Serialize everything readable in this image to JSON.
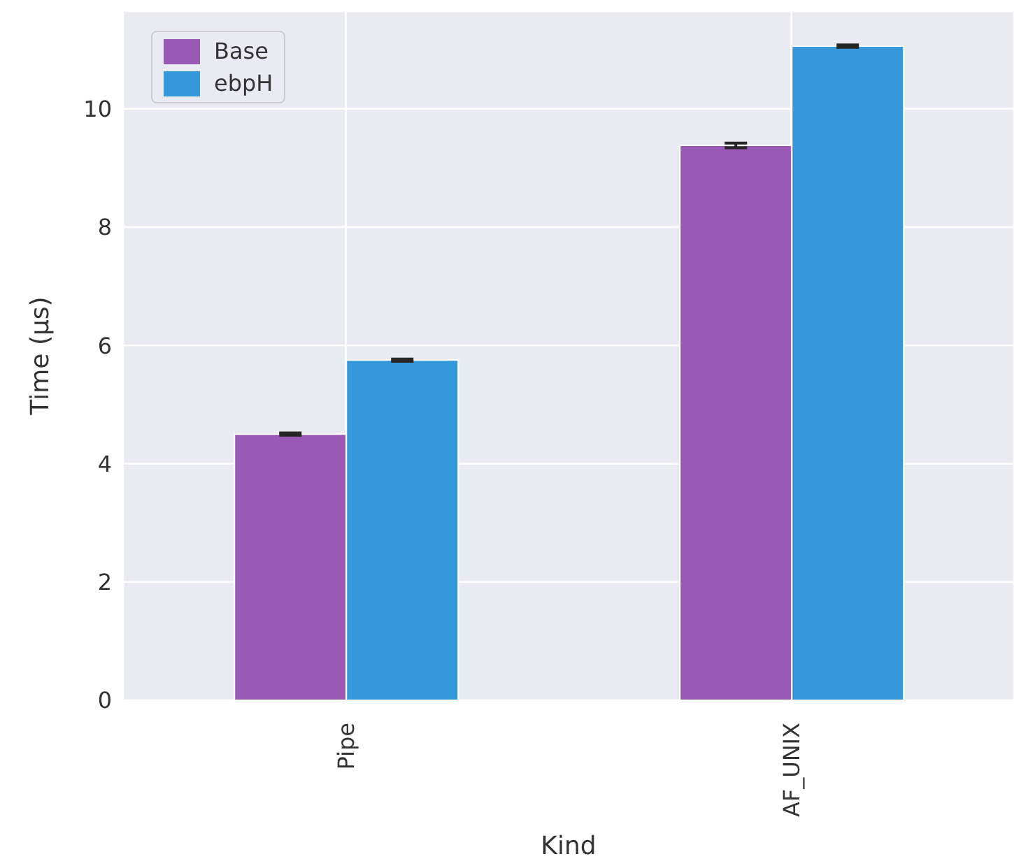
{
  "chart_data": {
    "type": "bar",
    "xlabel": "Kind",
    "ylabel": "Time (μs)",
    "categories": [
      "Pipe",
      "AF_UNIX"
    ],
    "series": [
      {
        "name": "Base",
        "color": "#9b59b6",
        "values": [
          4.5,
          9.38
        ],
        "errors": [
          0.02,
          0.04
        ]
      },
      {
        "name": "ebpH",
        "color": "#3498db",
        "values": [
          5.75,
          11.06
        ],
        "errors": [
          0.02,
          0.02
        ]
      }
    ],
    "ylim": [
      0,
      11.65
    ],
    "yticks": [
      0,
      2,
      4,
      6,
      8,
      10
    ],
    "grid": true,
    "legend": "top left"
  }
}
